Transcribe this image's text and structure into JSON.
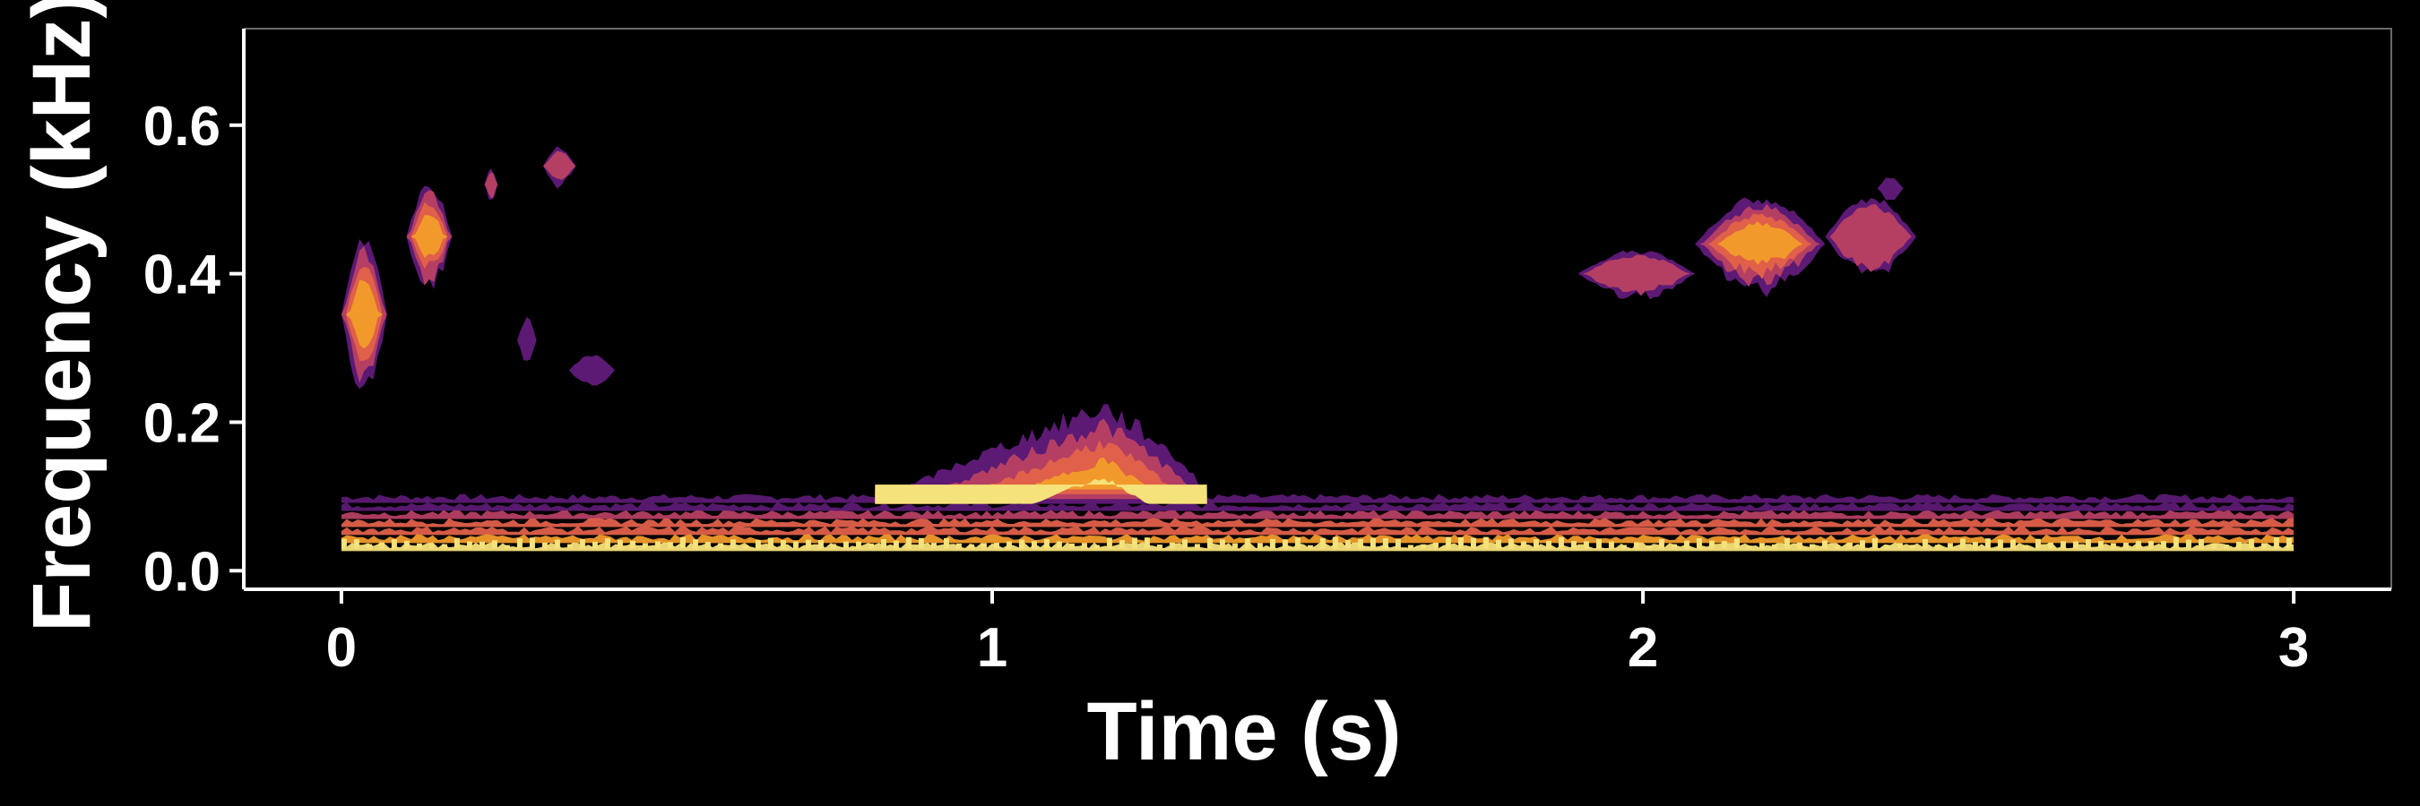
{
  "chart_data": {
    "type": "heatmap",
    "subtype": "spectrogram",
    "title": "",
    "xlabel": "Time (s)",
    "ylabel": "Frequency (kHz)",
    "xlim": [
      -0.15,
      3.15
    ],
    "ylim": [
      -0.025,
      0.73
    ],
    "xticks": [
      0,
      1,
      2,
      3
    ],
    "yticks": [
      0.0,
      0.2,
      0.4,
      0.6
    ],
    "xtick_labels": [
      "0",
      "1",
      "2",
      "3"
    ],
    "ytick_labels": [
      "0.0",
      "0.2",
      "0.4",
      "0.6"
    ],
    "grid": false,
    "legend": "none",
    "colors": {
      "background": "#000000",
      "axis": "#ffffff",
      "frame": "#6a6a6a",
      "levels": [
        "#5c1a74",
        "#b53f63",
        "#e0604a",
        "#f19a2b",
        "#f6e27a"
      ]
    },
    "background_band": {
      "x_range": [
        0.0,
        3.0
      ],
      "y_range": [
        0.03,
        0.095
      ]
    },
    "regions": [
      {
        "t": [
          0.0,
          0.07
        ],
        "f": [
          0.24,
          0.45
        ],
        "level": 0.85
      },
      {
        "t": [
          0.1,
          0.17
        ],
        "f": [
          0.38,
          0.52
        ],
        "level": 0.7
      },
      {
        "t": [
          0.22,
          0.24
        ],
        "f": [
          0.5,
          0.54
        ],
        "level": 0.3
      },
      {
        "t": [
          0.31,
          0.36
        ],
        "f": [
          0.52,
          0.57
        ],
        "level": 0.35
      },
      {
        "t": [
          0.27,
          0.3
        ],
        "f": [
          0.28,
          0.34
        ],
        "level": 0.2
      },
      {
        "t": [
          0.35,
          0.42
        ],
        "f": [
          0.25,
          0.29
        ],
        "level": 0.15
      },
      {
        "t": [
          0.82,
          1.33
        ],
        "f": [
          0.09,
          0.22
        ],
        "level": 1.0,
        "peak_t": 1.17
      },
      {
        "t": [
          1.9,
          2.08
        ],
        "f": [
          0.37,
          0.43
        ],
        "level": 0.4
      },
      {
        "t": [
          2.08,
          2.28
        ],
        "f": [
          0.38,
          0.5
        ],
        "level": 0.75
      },
      {
        "t": [
          2.28,
          2.42
        ],
        "f": [
          0.4,
          0.5
        ],
        "level": 0.35
      },
      {
        "t": [
          2.36,
          2.4
        ],
        "f": [
          0.5,
          0.53
        ],
        "level": 0.2
      }
    ]
  }
}
